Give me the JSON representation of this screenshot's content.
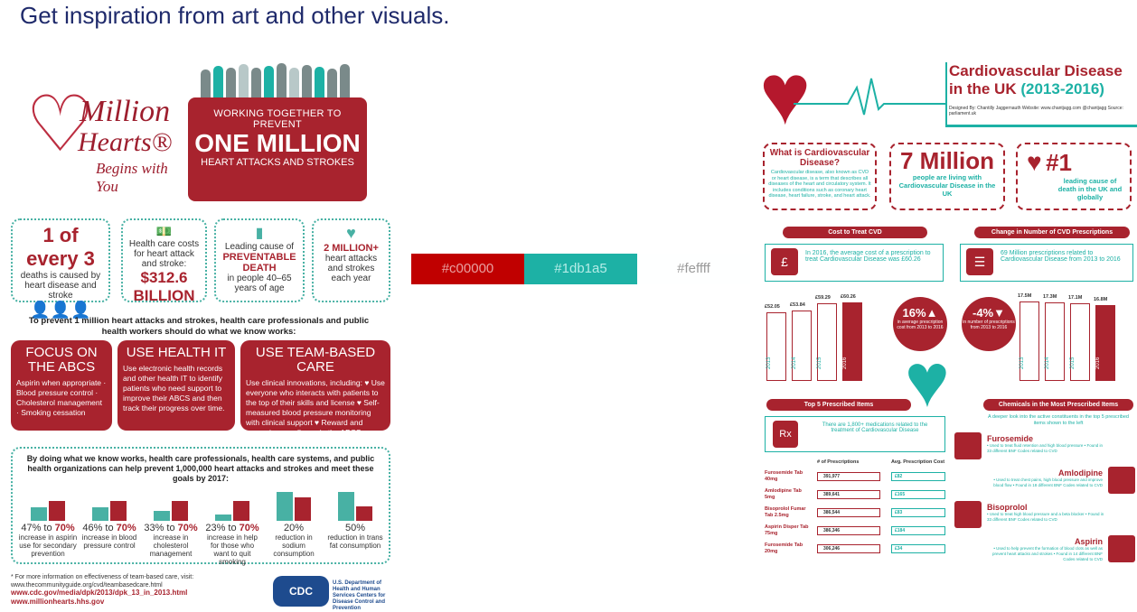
{
  "slide": {
    "title": "Get inspiration from art and other visuals."
  },
  "left_poster": {
    "logo": {
      "line1": "Million",
      "line2": "Hearts®",
      "line3": "Begins with You"
    },
    "banner": {
      "line1": "WORKING TOGETHER TO PREVENT",
      "line2": "ONE MILLION",
      "line3": "HEART ATTACKS AND STROKES"
    },
    "stats": [
      {
        "big": "1 of every 3",
        "text": "deaths is caused by heart disease and stroke"
      },
      {
        "big": "$312.6 BILLION",
        "text": "Health care costs for heart attack and stroke:"
      },
      {
        "big": "PREVENTABLE DEATH",
        "text_top": "Leading cause of",
        "text": "in people 40–65 years of age"
      },
      {
        "big": "2 MILLION+",
        "text": "heart attacks and strokes each year"
      }
    ],
    "intro": "To prevent 1 million heart attacks and strokes, health care professionals and public health workers should do what we know works:",
    "boxes": [
      {
        "title": "FOCUS ON THE ABCS",
        "body": "Aspirin when appropriate · Blood pressure control · Cholesterol management · Smoking cessation"
      },
      {
        "title": "USE HEALTH IT",
        "body": "Use electronic health records and other health IT to identify patients who need support to improve their ABCS and then track their progress over time."
      },
      {
        "title": "USE TEAM-BASED CARE",
        "body": "Use clinical innovations, including: ♥ Use everyone who interacts with patients to the top of their skills and license ♥ Self-measured blood pressure monitoring with clinical support ♥ Reward and recognize excellence in the ABCS"
      }
    ],
    "goals_title": "By doing what we know works, health care professionals, health care systems, and public health organizations can help prevent 1,000,000 heart attacks and strokes and meet these goals by 2017:",
    "goals": [
      {
        "pct_from": "47%",
        "to": "to",
        "pct_to": "70%",
        "desc": "increase in aspirin use for secondary prevention",
        "level_from": 0.47,
        "level_to": 0.7
      },
      {
        "pct_from": "46%",
        "to": "to",
        "pct_to": "70%",
        "desc": "increase in blood pressure control",
        "level_from": 0.46,
        "level_to": 0.7
      },
      {
        "pct_from": "33%",
        "to": "to",
        "pct_to": "70%",
        "desc": "increase in cholesterol management",
        "level_from": 0.33,
        "level_to": 0.7
      },
      {
        "pct_from": "23%",
        "to": "to",
        "pct_to": "70%",
        "desc": "increase in help for those who want to quit smoking",
        "level_from": 0.23,
        "level_to": 0.7
      },
      {
        "pct_from": "20%",
        "to": "",
        "pct_to": "",
        "desc": "reduction in sodium consumption",
        "level_from": 1.0,
        "level_to": 0.8
      },
      {
        "pct_from": "50%",
        "to": "",
        "pct_to": "",
        "desc": "reduction in trans fat consumption",
        "level_from": 1.0,
        "level_to": 0.5
      }
    ],
    "footnote": "* For more information on effectiveness of team-based care, visit: www.thecommunityguide.org/cvd/teambasedcare.html",
    "links": [
      "www.cdc.gov/media/dpk/2013/dpk_13_in_2013.html",
      "www.millionhearts.hhs.gov"
    ],
    "cdc": "CDC",
    "hhs": "U.S. Department of Health and Human Services Centers for Disease Control and Prevention"
  },
  "swatches": [
    {
      "label": "#c00000",
      "bg": "#c00000",
      "fg": "#e8a0a0"
    },
    {
      "label": "#1db1a5",
      "bg": "#1db1a5",
      "fg": "#b5ece7"
    },
    {
      "label": "#feffff",
      "bg": "#feffff",
      "fg": "#9a9a9a"
    }
  ],
  "right_poster": {
    "title_a": "Cardiovascular Disease in the UK",
    "title_b": "(2013-2016)",
    "meta": "Designed By: Chantilly Jaggernauth   Website: www.chantjagg.com   @chantjagg   Source: parliament.uk",
    "cards": [
      {
        "head": "What is Cardiovascular Disease?",
        "body": "Cardiovascular disease, also known as CVD or heart disease, is a term that describes all diseases of the heart and circulatory system. It includes conditions such as coronary heart disease, heart failure, stroke, and heart attack."
      },
      {
        "big": "7 Million",
        "body": "people are living with Cardiovascular Disease in the UK"
      },
      {
        "big": "#1",
        "body": "leading cause of death in the UK and globally"
      }
    ],
    "sections": [
      "Cost to Treat CVD",
      "Change in Number of CVD Prescriptions",
      "Top 5 Prescribed Items",
      "Chemicals in the Most Prescribed Items"
    ],
    "cost_text": "In 2016, the average cost of a prescription to treat Cardiovascular Disease was £60.26",
    "rx_text": "69 Million prescriptions related to Cardiovascular Disease from 2013 to 2016",
    "cost_bars": [
      {
        "year": "2013",
        "label": "£52.05",
        "value": 52.05
      },
      {
        "year": "2014",
        "label": "£53.84",
        "value": 53.84
      },
      {
        "year": "2015",
        "label": "£59.29",
        "value": 59.29
      },
      {
        "year": "2016",
        "label": "£60.26",
        "value": 60.26
      }
    ],
    "rx_bars": [
      {
        "year": "2013",
        "label": "17.5M",
        "value": 17.5
      },
      {
        "year": "2014",
        "label": "17.3M",
        "value": 17.3
      },
      {
        "year": "2015",
        "label": "17.1M",
        "value": 17.1
      },
      {
        "year": "2016",
        "label": "16.8M",
        "value": 16.8
      }
    ],
    "cost_change": {
      "big": "16%▲",
      "small": "in average prescription cost from 2013 to 2016"
    },
    "rx_change": {
      "big": "-4%▼",
      "small": "in number of prescriptions from 2013 to 2016"
    },
    "top5_text": "There are 1,800+ medications related to the treatment of Cardiovascular Disease",
    "table_headers": [
      "# of Prescriptions",
      "Avg. Prescription Cost"
    ],
    "table_rows": [
      {
        "name": "Furosemide Tab 40mg",
        "count": "391,977",
        "cost": "£82"
      },
      {
        "name": "Amlodipine Tab 5mg",
        "count": "389,641",
        "cost": "£165"
      },
      {
        "name": "Bisoprolol Fumar Tab 2.5mg",
        "count": "386,544",
        "cost": "£83"
      },
      {
        "name": "Aspirin Disper Tab 75mg",
        "count": "386,346",
        "cost": "£184"
      },
      {
        "name": "Furosemide Tab 20mg",
        "count": "306,246",
        "cost": "£34"
      }
    ],
    "chem_intro": "A deeper look into the active constituents in the top 5 prescribed items shown to the left",
    "chems": [
      {
        "name": "Furosemide",
        "info": "• Used to treat fluid retention and high blood pressure • Found in 33 different BNF Codes related to CVD"
      },
      {
        "name": "Amlodipine",
        "info": "• Used to treat chest pains, high blood pressure and improve blood flow • Found in 18 different BNF Codes related to CVD"
      },
      {
        "name": "Bisoprolol",
        "info": "• Used to treat high blood pressure and a beta blocker • Found in 33 different BNF Codes related to CVD"
      },
      {
        "name": "Aspirin",
        "info": "• Used to help prevent the formation of blood clots as well as prevent heart attacks and strokes • Found in 14 different BNF Codes related to CVD"
      }
    ]
  }
}
